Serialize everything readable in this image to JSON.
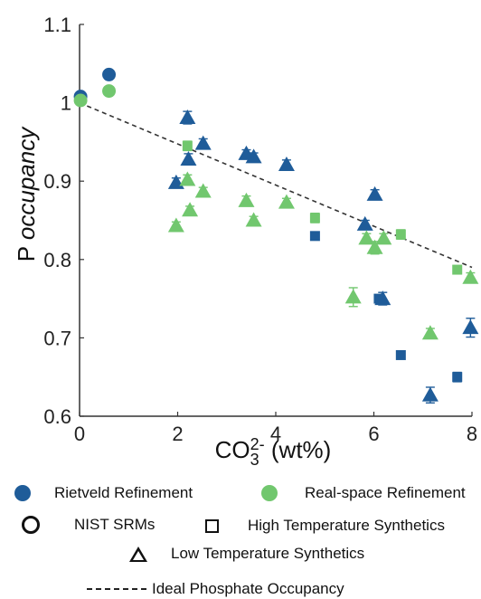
{
  "chart_data": {
    "type": "scatter",
    "xlabel_main": "CO",
    "xlabel_sub": "3",
    "xlabel_sup": "2-",
    "xlabel_tail": " (wt%)",
    "ylabel_main": "P ",
    "ylabel_italic": "occupancy",
    "xlim": [
      0,
      8
    ],
    "ylim": [
      0.6,
      1.1
    ],
    "xticks": [
      "0",
      "2",
      "4",
      "6",
      "8"
    ],
    "yticks": [
      "0.6",
      "0.7",
      "0.8",
      "0.9",
      "1",
      "1.1"
    ],
    "grid": false,
    "colors": {
      "rietveld": "#1f5c99",
      "realspace": "#71c76e"
    },
    "ideal_line": {
      "x": [
        0,
        8
      ],
      "y": [
        1.0,
        0.79
      ]
    },
    "series": [
      {
        "method": "rietveld",
        "shape": "circle",
        "points": [
          {
            "x": 0.02,
            "y": 1.008,
            "err": 0.002
          },
          {
            "x": 0.6,
            "y": 1.036,
            "err": 0.002
          }
        ]
      },
      {
        "method": "realspace",
        "shape": "circle",
        "points": [
          {
            "x": 0.02,
            "y": 1.003,
            "err": 0.002
          },
          {
            "x": 0.6,
            "y": 1.015,
            "err": 0.002
          }
        ]
      },
      {
        "method": "rietveld",
        "shape": "square",
        "points": [
          {
            "x": 4.8,
            "y": 0.83,
            "err": 0.004
          },
          {
            "x": 6.1,
            "y": 0.75,
            "err": 0.004
          },
          {
            "x": 6.55,
            "y": 0.678,
            "err": 0.004
          },
          {
            "x": 7.7,
            "y": 0.65,
            "err": 0.006
          }
        ]
      },
      {
        "method": "realspace",
        "shape": "square",
        "points": [
          {
            "x": 2.2,
            "y": 0.945,
            "err": 0.006
          },
          {
            "x": 4.8,
            "y": 0.853,
            "err": 0.006
          },
          {
            "x": 6.55,
            "y": 0.832,
            "err": 0.006
          },
          {
            "x": 7.7,
            "y": 0.787,
            "err": 0.005
          }
        ]
      },
      {
        "method": "rietveld",
        "shape": "triangle",
        "points": [
          {
            "x": 1.97,
            "y": 0.898,
            "err": 0.006
          },
          {
            "x": 2.2,
            "y": 0.981,
            "err": 0.008
          },
          {
            "x": 2.22,
            "y": 0.928,
            "err": 0.007
          },
          {
            "x": 2.52,
            "y": 0.948,
            "err": 0.006
          },
          {
            "x": 3.4,
            "y": 0.935,
            "err": 0.005
          },
          {
            "x": 3.55,
            "y": 0.931,
            "err": 0.005
          },
          {
            "x": 4.22,
            "y": 0.921,
            "err": 0.006
          },
          {
            "x": 5.82,
            "y": 0.845,
            "err": 0.005
          },
          {
            "x": 6.02,
            "y": 0.883,
            "err": 0.006
          },
          {
            "x": 6.18,
            "y": 0.75,
            "err": 0.008
          },
          {
            "x": 7.15,
            "y": 0.627,
            "err": 0.01
          },
          {
            "x": 7.97,
            "y": 0.713,
            "err": 0.012
          }
        ]
      },
      {
        "method": "realspace",
        "shape": "triangle",
        "points": [
          {
            "x": 1.97,
            "y": 0.843,
            "err": 0.005
          },
          {
            "x": 2.2,
            "y": 0.902,
            "err": 0.006
          },
          {
            "x": 2.25,
            "y": 0.863,
            "err": 0.005
          },
          {
            "x": 2.52,
            "y": 0.887,
            "err": 0.005
          },
          {
            "x": 3.4,
            "y": 0.875,
            "err": 0.006
          },
          {
            "x": 3.55,
            "y": 0.85,
            "err": 0.005
          },
          {
            "x": 4.22,
            "y": 0.873,
            "err": 0.005
          },
          {
            "x": 5.58,
            "y": 0.752,
            "err": 0.012
          },
          {
            "x": 5.85,
            "y": 0.827,
            "err": 0.006
          },
          {
            "x": 6.02,
            "y": 0.815,
            "err": 0.008
          },
          {
            "x": 6.2,
            "y": 0.827,
            "err": 0.006
          },
          {
            "x": 7.15,
            "y": 0.706,
            "err": 0.006
          },
          {
            "x": 7.97,
            "y": 0.777,
            "err": 0.006
          }
        ]
      }
    ]
  },
  "legend": {
    "rietveld": "Rietveld Refinement",
    "realspace": "Real-space Refinement",
    "nist": "NIST SRMs",
    "high_temp": "High Temperature Synthetics",
    "low_temp": "Low Temperature Synthetics",
    "ideal": "Ideal Phosphate Occupancy"
  }
}
